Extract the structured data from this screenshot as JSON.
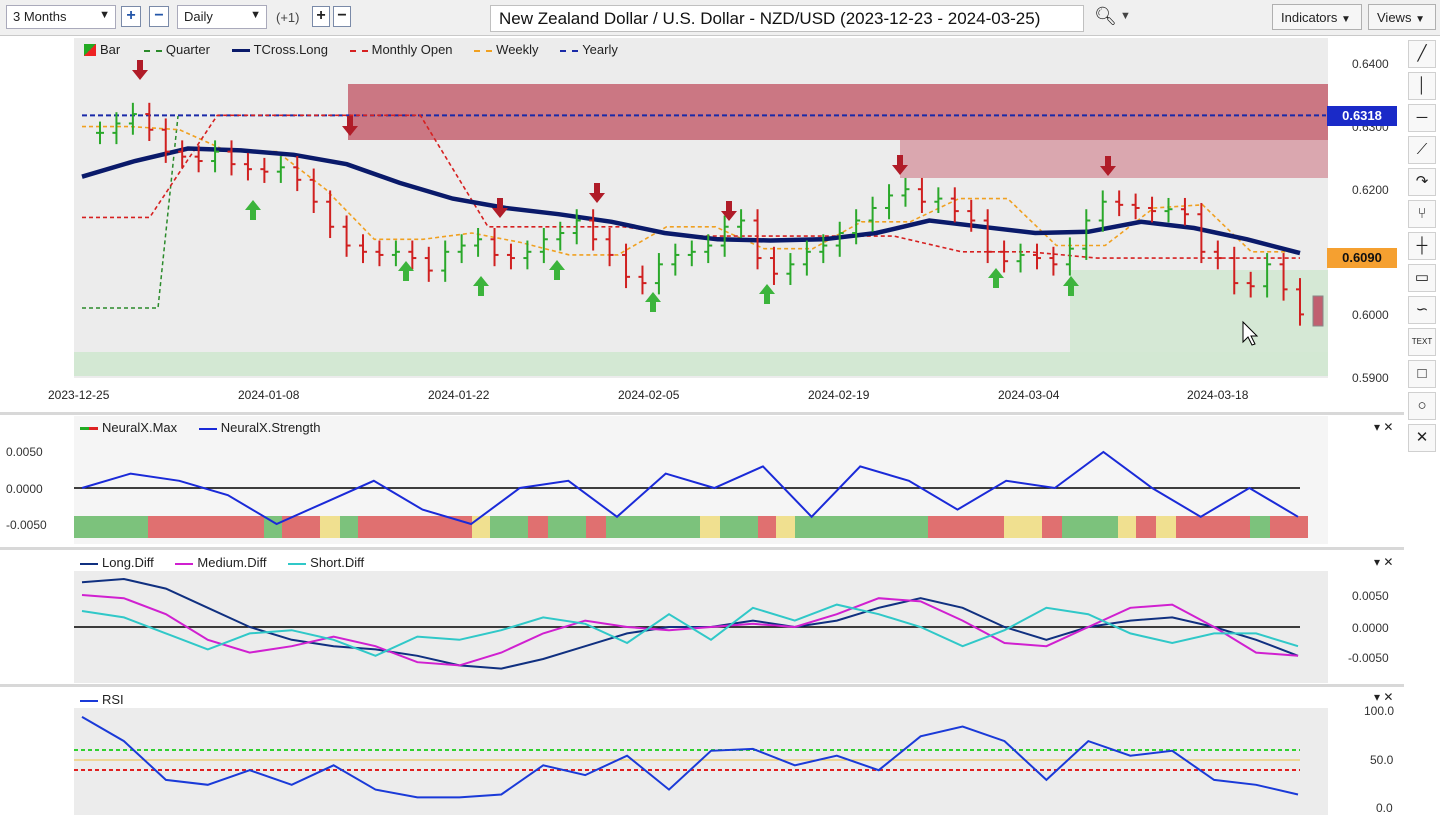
{
  "toolbar": {
    "period": "3 Months",
    "interval": "Daily",
    "offset": "(+1)",
    "title": "New Zealand Dollar / U.S. Dollar - NZD/USD (2023-12-23 - 2024-03-25)",
    "indicators": "Indicators",
    "views": "Views"
  },
  "tools": [
    "line-tool-icon",
    "vertical-line-icon",
    "horizontal-line-icon",
    "trend-line-icon",
    "curve-icon",
    "fork-icon",
    "crosshair-icon",
    "comment-icon",
    "wave-icon",
    "text-icon",
    "rectangle-icon",
    "circle-icon",
    "close-icon"
  ],
  "main": {
    "legend": [
      {
        "label": "Bar",
        "color": "#e02020"
      },
      {
        "label": "Quarter",
        "color": "#2a8a2a"
      },
      {
        "label": "TCross.Long",
        "color": "#0a1a6a"
      },
      {
        "label": "Monthly Open",
        "color": "#d62020"
      },
      {
        "label": "Weekly",
        "color": "#f0a020"
      },
      {
        "label": "Yearly",
        "color": "#1a2aa8"
      }
    ],
    "price_axis": [
      "0.6400",
      "0.6300",
      "0.6200",
      "0.6000",
      "0.5900"
    ],
    "yearly_tag": "0.6318",
    "monthly_tag": "0.6090",
    "dates": [
      "2023-12-25",
      "2024-01-08",
      "2024-01-22",
      "2024-02-05",
      "2024-02-19",
      "2024-03-04",
      "2024-03-18"
    ]
  },
  "neural": {
    "legend": [
      {
        "label": "NeuralX.Max",
        "color": "#d02020"
      },
      {
        "label": "NeuralX.Strength",
        "color": "#1a2ad8"
      }
    ],
    "axis": [
      "0.0050",
      "0.0000",
      "-0.0050"
    ]
  },
  "diff": {
    "legend": [
      {
        "label": "Long.Diff",
        "color": "#103080"
      },
      {
        "label": "Medium.Diff",
        "color": "#d020d0"
      },
      {
        "label": "Short.Diff",
        "color": "#30c8c8"
      }
    ],
    "axis": [
      "0.0050",
      "0.0000",
      "-0.0050"
    ]
  },
  "rsi": {
    "legend": [
      {
        "label": "RSI",
        "color": "#1a3ad8"
      }
    ],
    "axis": [
      "100.0",
      "50.0",
      "0.0"
    ]
  },
  "chart_data": {
    "type": "line",
    "title": "New Zealand Dollar / U.S. Dollar - NZD/USD (2023-12-23 - 2024-03-25)",
    "x_ticks": [
      "2023-12-25",
      "2024-01-08",
      "2024-01-22",
      "2024-02-05",
      "2024-02-19",
      "2024-03-04",
      "2024-03-18"
    ],
    "ylim": [
      0.59,
      0.64
    ],
    "series": [
      {
        "name": "TCross.Long",
        "values": [
          0.622,
          0.6245,
          0.6265,
          0.6262,
          0.6255,
          0.624,
          0.621,
          0.6185,
          0.617,
          0.616,
          0.6148,
          0.613,
          0.612,
          0.6118,
          0.612,
          0.613,
          0.615,
          0.614,
          0.613,
          0.6132,
          0.6148,
          0.6138,
          0.612,
          0.6098
        ]
      },
      {
        "name": "Monthly Open",
        "values": [
          0.6155,
          0.6155,
          0.6318,
          0.6318,
          0.6318,
          0.6318,
          0.614,
          0.614,
          0.614,
          0.6125,
          0.6125,
          0.6125,
          0.6125,
          0.61,
          0.61,
          0.609,
          0.609,
          0.609,
          0.609
        ]
      },
      {
        "name": "Yearly",
        "values": [
          0.6318
        ]
      }
    ],
    "neural_strength": [
      0.0,
      0.002,
      0.001,
      -0.001,
      -0.005,
      -0.002,
      0.001,
      -0.003,
      -0.005,
      0.0,
      0.001,
      -0.004,
      0.002,
      0.0,
      0.003,
      -0.004,
      0.003,
      0.001,
      -0.003,
      0.001,
      0.0,
      0.005,
      0.0,
      -0.004,
      0.0,
      -0.004
    ],
    "rsi": [
      95,
      70,
      30,
      25,
      40,
      25,
      45,
      20,
      12,
      12,
      15,
      45,
      35,
      55,
      20,
      60,
      62,
      45,
      55,
      40,
      75,
      85,
      70,
      30,
      70,
      55,
      60,
      30,
      25,
      15
    ]
  }
}
